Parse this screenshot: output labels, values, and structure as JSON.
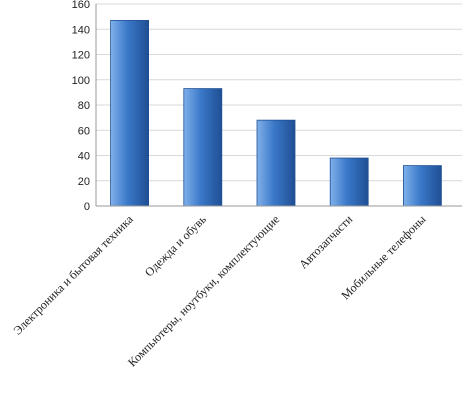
{
  "chart_data": {
    "type": "bar",
    "title": "",
    "xlabel": "",
    "ylabel": "",
    "categories": [
      "Электроника и бытовая техника",
      "Одежда и обувь",
      "Компьютеры, ноутбуки, комплектующие",
      "Автозапчасти",
      "Мобильные телефоны"
    ],
    "values": [
      147,
      93,
      68,
      38,
      32
    ],
    "ylim": [
      0,
      160
    ],
    "yticks": [
      0,
      20,
      40,
      60,
      80,
      100,
      120,
      140,
      160
    ],
    "grid": true,
    "legend": "none",
    "bar_color": "#3a78c8",
    "bar_color_light": "#7fb0ea",
    "bar_color_dark": "#1f4f94"
  }
}
